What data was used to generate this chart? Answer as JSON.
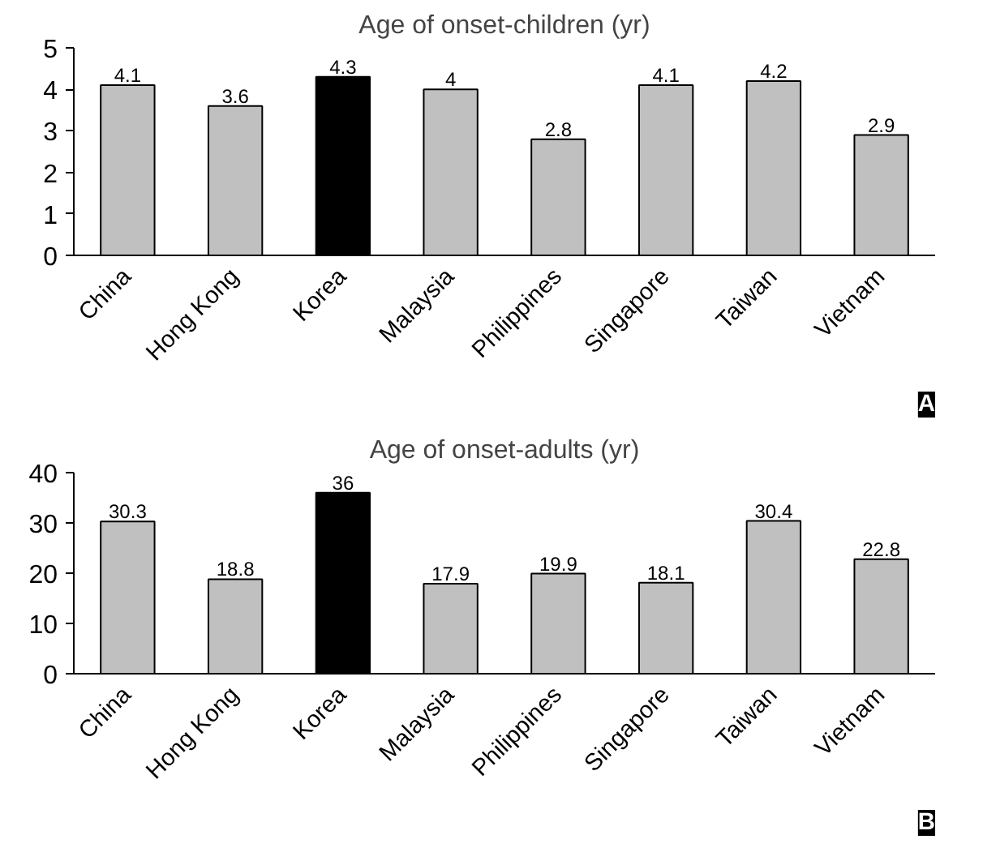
{
  "chart_data": [
    {
      "type": "bar",
      "title": "Age of onset-children (yr)",
      "categories": [
        "China",
        "Hong Kong",
        "Korea",
        "Malaysia",
        "Philippines",
        "Singapore",
        "Taiwan",
        "Vietnam"
      ],
      "values": [
        4.1,
        3.6,
        4.3,
        4,
        2.8,
        4.1,
        4.2,
        2.9
      ],
      "colors": [
        "#c0c0c0",
        "#c0c0c0",
        "#000000",
        "#c0c0c0",
        "#c0c0c0",
        "#c0c0c0",
        "#c0c0c0",
        "#c0c0c0"
      ],
      "ylim": [
        0,
        5
      ],
      "yticks": [
        0,
        1,
        2,
        3,
        4,
        5
      ],
      "data_labels": true,
      "grid": false,
      "annotations": [
        "A"
      ]
    },
    {
      "type": "bar",
      "title": "Age of onset-adults (yr)",
      "categories": [
        "China",
        "Hong Kong",
        "Korea",
        "Malaysia",
        "Philippines",
        "Singapore",
        "Taiwan",
        "Vietnam"
      ],
      "values": [
        30.3,
        18.8,
        36,
        17.9,
        19.9,
        18.1,
        30.4,
        22.8
      ],
      "colors": [
        "#c0c0c0",
        "#c0c0c0",
        "#000000",
        "#c0c0c0",
        "#c0c0c0",
        "#c0c0c0",
        "#c0c0c0",
        "#c0c0c0"
      ],
      "ylim": [
        0,
        40
      ],
      "yticks": [
        0,
        10,
        20,
        30,
        40
      ],
      "data_labels": true,
      "grid": false,
      "annotations": [
        "B"
      ]
    }
  ]
}
